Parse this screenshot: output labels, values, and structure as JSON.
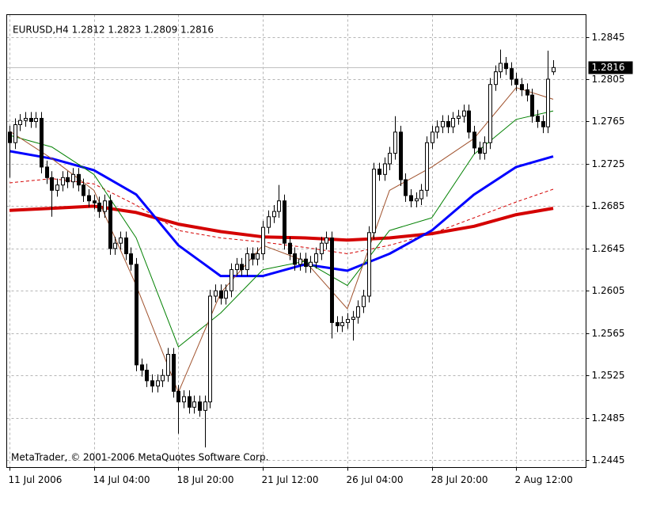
{
  "chart_data": {
    "type": "candlestick",
    "title": "EURUSD,H4  1.2812 1.2823 1.2809 1.2816",
    "footer": "MetaTrader, © 2001-2006 MetaQuotes Software Corp.",
    "categories": [
      "11 Jul 2006",
      null,
      null,
      null,
      null,
      null,
      null,
      null,
      null,
      null,
      null,
      null,
      null,
      null,
      null,
      null,
      "14 Jul 04:00",
      null,
      null,
      null,
      null,
      null,
      null,
      null,
      null,
      null,
      null,
      null,
      null,
      null,
      null,
      null,
      "18 Jul 20:00",
      null,
      null,
      null,
      null,
      null,
      null,
      null,
      null,
      null,
      null,
      null,
      null,
      null,
      null,
      null,
      "21 Jul 12:00",
      null,
      null,
      null,
      null,
      null,
      null,
      null,
      null,
      null,
      null,
      null,
      null,
      null,
      null,
      null,
      "26 Jul 04:00",
      null,
      null,
      null,
      null,
      null,
      null,
      null,
      null,
      null,
      null,
      null,
      null,
      null,
      null,
      null,
      "28 Jul 20:00",
      null,
      null,
      null,
      null,
      null,
      null,
      null,
      null,
      null,
      null,
      null,
      null,
      null,
      null,
      null,
      "2 Aug 12:00",
      null,
      null,
      null,
      null,
      null,
      null,
      null
    ],
    "open": [
      1.2755,
      1.2745,
      1.2762,
      1.2766,
      1.2768,
      1.2765,
      1.2768,
      1.2722,
      1.2712,
      1.27,
      1.2705,
      1.2712,
      1.2708,
      1.2715,
      1.2705,
      1.2695,
      1.269,
      1.2688,
      1.268,
      1.269,
      1.2645,
      1.265,
      1.2655,
      1.264,
      1.263,
      1.2535,
      1.253,
      1.252,
      1.2515,
      1.252,
      1.2525,
      1.2545,
      1.251,
      1.25,
      1.2505,
      1.2495,
      1.25,
      1.2492,
      1.25,
      1.26,
      1.2605,
      1.2598,
      1.2605,
      1.2625,
      1.263,
      1.2625,
      1.264,
      1.2635,
      1.264,
      1.2665,
      1.2675,
      1.268,
      1.269,
      1.265,
      1.264,
      1.263,
      1.2635,
      1.2628,
      1.2632,
      1.264,
      1.265,
      1.2655,
      1.2575,
      1.2572,
      1.2575,
      1.2578,
      1.258,
      1.259,
      1.26,
      1.266,
      1.272,
      1.2715,
      1.2725,
      1.2735,
      1.2755,
      1.271,
      1.2695,
      1.269,
      1.2692,
      1.27,
      1.2745,
      1.2755,
      1.276,
      1.2765,
      1.276,
      1.2768,
      1.277,
      1.2775,
      1.2755,
      1.274,
      1.2735,
      1.2745,
      1.28,
      1.2812,
      1.282,
      1.2815,
      1.2805,
      1.28,
      1.2795,
      1.279,
      1.277,
      1.2765,
      1.276,
      1.2812
    ],
    "high": [
      1.2761,
      1.2768,
      1.2772,
      1.2774,
      1.2774,
      1.2774,
      1.2774,
      1.2728,
      1.2718,
      1.2711,
      1.2718,
      1.2718,
      1.2721,
      1.2721,
      1.2711,
      1.2701,
      1.2696,
      1.2694,
      1.2696,
      1.2696,
      1.2656,
      1.2661,
      1.2661,
      1.2646,
      1.2636,
      1.2541,
      1.2536,
      1.2526,
      1.2526,
      1.2531,
      1.2551,
      1.2551,
      1.2516,
      1.2511,
      1.2511,
      1.2506,
      1.2506,
      1.2506,
      1.2606,
      1.2611,
      1.2611,
      1.2611,
      1.2631,
      1.2636,
      1.2636,
      1.2646,
      1.2646,
      1.2646,
      1.2671,
      1.2681,
      1.2686,
      1.2705,
      1.2696,
      1.2656,
      1.2646,
      1.2641,
      1.2641,
      1.2638,
      1.2646,
      1.2656,
      1.2661,
      1.2661,
      1.2581,
      1.2581,
      1.2584,
      1.2586,
      1.2596,
      1.2606,
      1.2666,
      1.2726,
      1.2726,
      1.2731,
      1.2741,
      1.277,
      1.2761,
      1.2716,
      1.2701,
      1.2698,
      1.2706,
      1.2751,
      1.2761,
      1.2766,
      1.2771,
      1.2771,
      1.2774,
      1.2776,
      1.2781,
      1.2781,
      1.2761,
      1.2746,
      1.2751,
      1.2806,
      1.2818,
      1.2833,
      1.2826,
      1.2821,
      1.2811,
      1.2806,
      1.2801,
      1.2796,
      1.2776,
      1.2771,
      1.2832,
      1.2823
    ],
    "low": [
      1.2712,
      1.2739,
      1.2756,
      1.276,
      1.2759,
      1.2759,
      1.2716,
      1.2706,
      1.2675,
      1.2694,
      1.2699,
      1.2702,
      1.2702,
      1.2699,
      1.2689,
      1.2684,
      1.2682,
      1.2674,
      1.2674,
      1.2639,
      1.2639,
      1.2644,
      1.2634,
      1.2624,
      1.2529,
      1.2524,
      1.2514,
      1.2509,
      1.2509,
      1.2514,
      1.2519,
      1.2504,
      1.247,
      1.2494,
      1.2489,
      1.2489,
      1.2486,
      1.2457,
      1.2494,
      1.2594,
      1.2592,
      1.2592,
      1.2599,
      1.2619,
      1.2619,
      1.2619,
      1.2629,
      1.2629,
      1.2634,
      1.2659,
      1.2669,
      1.2674,
      1.2644,
      1.2634,
      1.2624,
      1.2624,
      1.2622,
      1.2622,
      1.2626,
      1.2634,
      1.2644,
      1.256,
      1.2566,
      1.2566,
      1.2569,
      1.2558,
      1.2574,
      1.2584,
      1.2594,
      1.2654,
      1.2709,
      1.2709,
      1.2719,
      1.2729,
      1.2704,
      1.2689,
      1.2684,
      1.2684,
      1.2686,
      1.2694,
      1.2739,
      1.2749,
      1.2754,
      1.2754,
      1.2754,
      1.2762,
      1.2764,
      1.2749,
      1.2734,
      1.2729,
      1.2729,
      1.2739,
      1.2794,
      1.2806,
      1.2809,
      1.2799,
      1.2794,
      1.2789,
      1.2784,
      1.2764,
      1.2759,
      1.2754,
      1.2754,
      1.2809
    ],
    "close": [
      1.2745,
      1.2762,
      1.2766,
      1.2768,
      1.2765,
      1.2768,
      1.2722,
      1.2712,
      1.27,
      1.2705,
      1.2712,
      1.2708,
      1.2715,
      1.2705,
      1.2695,
      1.269,
      1.2688,
      1.268,
      1.269,
      1.2645,
      1.265,
      1.2655,
      1.264,
      1.263,
      1.2535,
      1.253,
      1.252,
      1.2515,
      1.252,
      1.2525,
      1.2545,
      1.251,
      1.25,
      1.2505,
      1.2495,
      1.25,
      1.2492,
      1.25,
      1.26,
      1.2605,
      1.2598,
      1.2605,
      1.2625,
      1.263,
      1.2625,
      1.264,
      1.2635,
      1.264,
      1.2665,
      1.2675,
      1.268,
      1.269,
      1.265,
      1.264,
      1.263,
      1.2635,
      1.2628,
      1.2632,
      1.264,
      1.265,
      1.2655,
      1.2575,
      1.2572,
      1.2575,
      1.2578,
      1.258,
      1.259,
      1.26,
      1.266,
      1.272,
      1.2715,
      1.2725,
      1.2735,
      1.2755,
      1.271,
      1.2695,
      1.269,
      1.2692,
      1.27,
      1.2745,
      1.2755,
      1.276,
      1.2765,
      1.276,
      1.2768,
      1.277,
      1.2775,
      1.2755,
      1.274,
      1.2735,
      1.2745,
      1.28,
      1.2812,
      1.282,
      1.2815,
      1.2805,
      1.28,
      1.2795,
      1.279,
      1.277,
      1.2765,
      1.276,
      1.2805,
      1.2816
    ],
    "overlays": [
      {
        "color": "#d40000",
        "width": 4,
        "dashed": false,
        "x": [
          0,
          8,
          16,
          24,
          32,
          40,
          48,
          56,
          64,
          72,
          80,
          88,
          96,
          103
        ],
        "values": [
          1.2681,
          1.2683,
          1.2685,
          1.2679,
          1.2668,
          1.2661,
          1.2656,
          1.2655,
          1.2653,
          1.2655,
          1.2659,
          1.2666,
          1.2677,
          1.2683
        ]
      },
      {
        "color": "#d40000",
        "width": 1,
        "dashed": true,
        "x": [
          0,
          8,
          16,
          24,
          32,
          40,
          48,
          56,
          64,
          72,
          80,
          88,
          96,
          103
        ],
        "values": [
          1.2707,
          1.2711,
          1.2706,
          1.2686,
          1.2662,
          1.2655,
          1.2651,
          1.2646,
          1.264,
          1.2648,
          1.2659,
          1.2674,
          1.2689,
          1.2701
        ]
      },
      {
        "color": "#0000ff",
        "width": 3,
        "dashed": false,
        "x": [
          0,
          8,
          16,
          24,
          32,
          40,
          48,
          56,
          64,
          72,
          80,
          88,
          96,
          103
        ],
        "values": [
          1.2737,
          1.273,
          1.2719,
          1.2696,
          1.2648,
          1.2619,
          1.2619,
          1.263,
          1.2624,
          1.264,
          1.2662,
          1.2696,
          1.2722,
          1.2732
        ]
      },
      {
        "color": "#008000",
        "width": 1,
        "dashed": false,
        "x": [
          0,
          8,
          16,
          24,
          32,
          40,
          48,
          56,
          64,
          72,
          80,
          88,
          96,
          103
        ],
        "values": [
          1.2752,
          1.2741,
          1.2715,
          1.2655,
          1.2552,
          1.2584,
          1.2625,
          1.2633,
          1.261,
          1.2662,
          1.2674,
          1.2734,
          1.2767,
          1.2775
        ]
      },
      {
        "color": "#a0522d",
        "width": 1,
        "dashed": false,
        "x": [
          0,
          8,
          16,
          24,
          32,
          40,
          48,
          56,
          64,
          72,
          80,
          88,
          96,
          103
        ],
        "values": [
          1.2756,
          1.273,
          1.27,
          1.261,
          1.2509,
          1.2603,
          1.2648,
          1.2633,
          1.2588,
          1.27,
          1.2722,
          1.2749,
          1.2797,
          1.2786
        ]
      }
    ],
    "ylim": [
      1.2438,
      1.2866
    ],
    "yticks": [
      1.2845,
      1.2805,
      1.2765,
      1.2725,
      1.2685,
      1.2645,
      1.2605,
      1.2565,
      1.2525,
      1.2485,
      1.2445
    ],
    "grid": true,
    "up_color": "#ffffff",
    "down_color": "#000000"
  }
}
